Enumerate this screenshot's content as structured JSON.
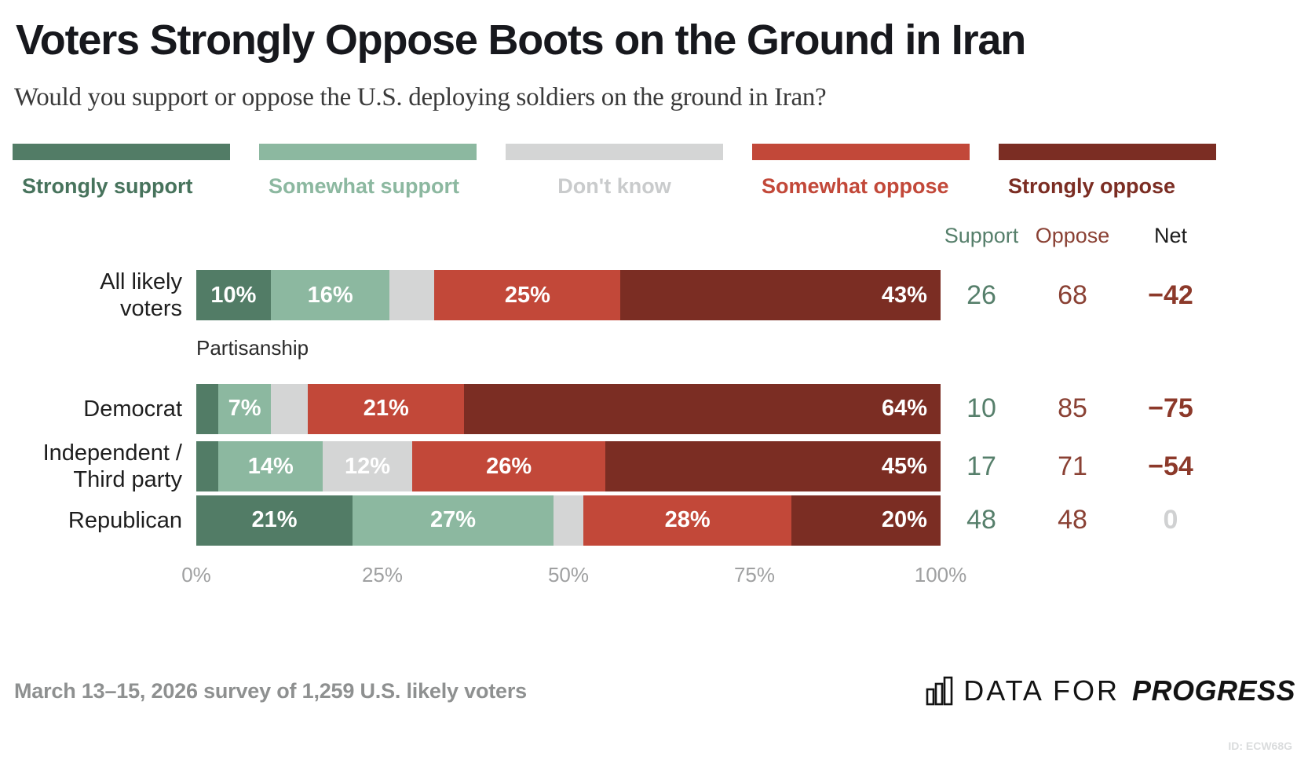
{
  "title": "Voters Strongly Oppose Boots on the Ground in Iran",
  "subtitle": "Would you support or oppose the U.S. deploying soldiers on the ground in Iran?",
  "section_label": "Partisanship",
  "summary_headers": {
    "support": "Support",
    "oppose": "Oppose",
    "net": "Net"
  },
  "colors": {
    "strongly_support": "#527C66",
    "somewhat_support": "#8CB8A0",
    "dont_know": "#D4D5D5",
    "somewhat_oppose": "#C24839",
    "strongly_oppose": "#7B2D23",
    "support_text": "#567F6B",
    "oppose_text": "#8A4134",
    "net_text": "#8C392A",
    "net_zero_text": "#D0D1D2",
    "axis_text": "#9FA0A1"
  },
  "legend": [
    {
      "id": "strongly-support",
      "label": "Strongly support",
      "color": "#527C66",
      "label_color": "#47735C",
      "align": "left"
    },
    {
      "id": "somewhat-support",
      "label": "Somewhat support",
      "color": "#8CB8A0",
      "label_color": "#8CB8A0",
      "align": "left"
    },
    {
      "id": "dont-know",
      "label": "Don't know",
      "color": "#D4D5D5",
      "label_color": "#C9CBCC",
      "align": "center"
    },
    {
      "id": "somewhat-oppose",
      "label": "Somewhat oppose",
      "color": "#C24839",
      "label_color": "#C24839",
      "align": "left"
    },
    {
      "id": "strongly-oppose",
      "label": "Strongly oppose",
      "color": "#7B2D23",
      "label_color": "#7B2D23",
      "align": "left"
    }
  ],
  "rows": [
    {
      "group": "all",
      "name": "All likely voters",
      "label_lines": [
        "All likely",
        "voters"
      ],
      "segments": [
        {
          "value": 10,
          "label": "10%"
        },
        {
          "value": 16,
          "label": "16%"
        },
        {
          "value": 6,
          "label": ""
        },
        {
          "value": 25,
          "label": "25%"
        },
        {
          "value": 43,
          "label": "43%"
        }
      ],
      "support": "26",
      "oppose": "68",
      "net": "−42",
      "net_zero": false
    },
    {
      "group": "partisan",
      "name": "Democrat",
      "label_lines": [
        "Democrat"
      ],
      "segments": [
        {
          "value": 3,
          "label": ""
        },
        {
          "value": 7,
          "label": "7%"
        },
        {
          "value": 5,
          "label": ""
        },
        {
          "value": 21,
          "label": "21%"
        },
        {
          "value": 64,
          "label": "64%"
        }
      ],
      "support": "10",
      "oppose": "85",
      "net": "−75",
      "net_zero": false
    },
    {
      "group": "partisan",
      "name": "Independent / Third party",
      "label_lines": [
        "Independent /",
        "Third party"
      ],
      "segments": [
        {
          "value": 3,
          "label": ""
        },
        {
          "value": 14,
          "label": "14%"
        },
        {
          "value": 12,
          "label": "12%"
        },
        {
          "value": 26,
          "label": "26%"
        },
        {
          "value": 45,
          "label": "45%"
        }
      ],
      "support": "17",
      "oppose": "71",
      "net": "−54",
      "net_zero": false
    },
    {
      "group": "partisan",
      "name": "Republican",
      "label_lines": [
        "Republican"
      ],
      "segments": [
        {
          "value": 21,
          "label": "21%"
        },
        {
          "value": 27,
          "label": "27%"
        },
        {
          "value": 4,
          "label": ""
        },
        {
          "value": 28,
          "label": "28%"
        },
        {
          "value": 20,
          "label": "20%"
        }
      ],
      "support": "48",
      "oppose": "48",
      "net": "0",
      "net_zero": true
    }
  ],
  "x_axis_ticks": [
    "0%",
    "25%",
    "50%",
    "75%",
    "100%"
  ],
  "footer": {
    "source": "March 13–15, 2026 survey of 1,259 U.S. likely voters",
    "logo_prefix": "DATA FOR",
    "logo_suffix": "PROGRESS",
    "id_tag": "ID: ECW68G"
  },
  "chart_data": {
    "type": "bar",
    "orientation": "horizontal_stacked",
    "title": "Voters Strongly Oppose Boots on the Ground in Iran",
    "subtitle": "Would you support or oppose the U.S. deploying soldiers on the ground in Iran?",
    "categories": [
      "All likely voters",
      "Democrat",
      "Independent / Third party",
      "Republican"
    ],
    "series": [
      {
        "name": "Strongly support",
        "color": "#527C66",
        "values": [
          10,
          3,
          3,
          21
        ]
      },
      {
        "name": "Somewhat support",
        "color": "#8CB8A0",
        "values": [
          16,
          7,
          14,
          27
        ]
      },
      {
        "name": "Don't know",
        "color": "#D4D5D5",
        "values": [
          6,
          5,
          12,
          4
        ]
      },
      {
        "name": "Somewhat oppose",
        "color": "#C24839",
        "values": [
          25,
          21,
          26,
          28
        ]
      },
      {
        "name": "Strongly oppose",
        "color": "#7B2D23",
        "values": [
          43,
          64,
          45,
          20
        ]
      }
    ],
    "summary": {
      "support": [
        26,
        10,
        17,
        48
      ],
      "oppose": [
        68,
        85,
        71,
        48
      ],
      "net": [
        -42,
        -75,
        -54,
        0
      ]
    },
    "xlim": [
      0,
      100
    ],
    "x_ticks": [
      "0%",
      "25%",
      "50%",
      "75%",
      "100%"
    ],
    "legend_position": "top",
    "grid": false
  }
}
